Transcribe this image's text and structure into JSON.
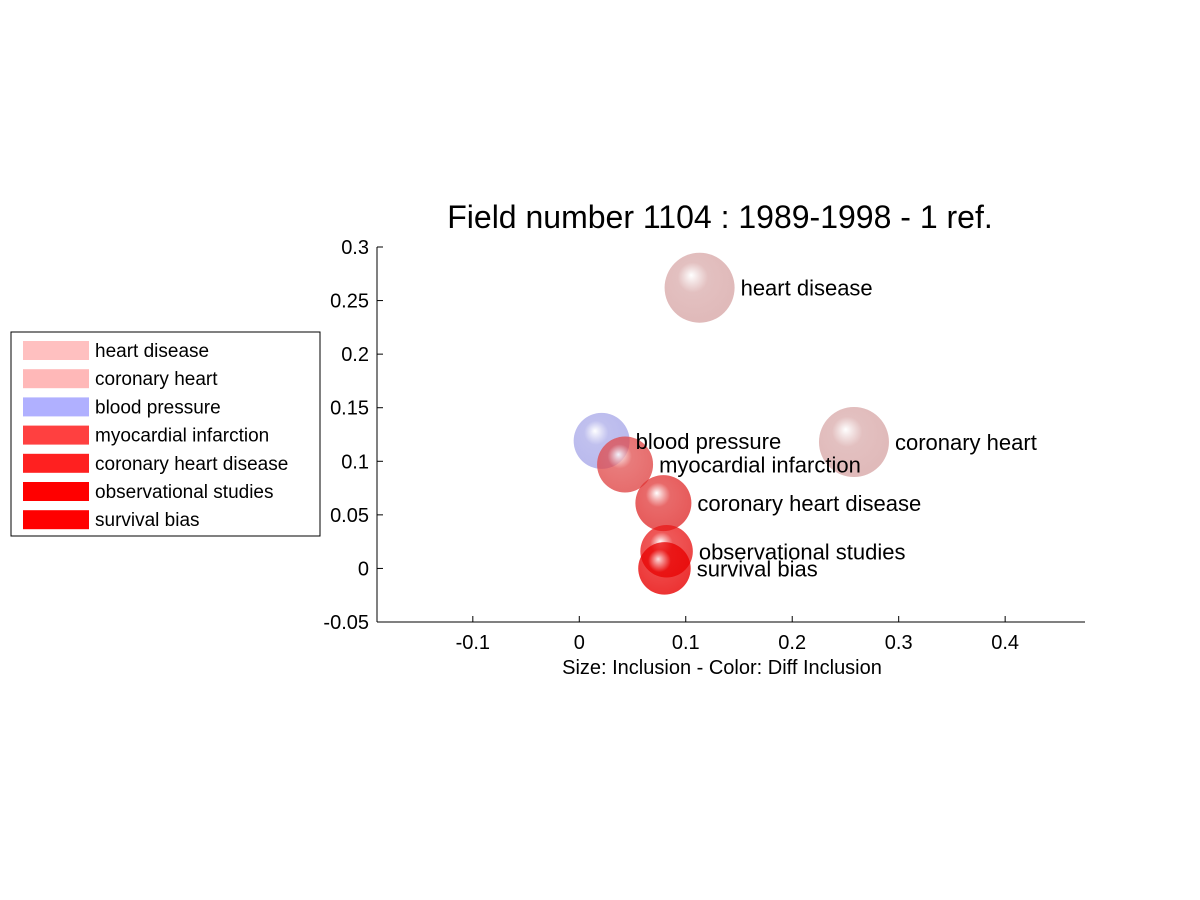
{
  "chart_data": {
    "type": "scatter",
    "title": "Field number 1104 : 1989-1998  - 1 ref.",
    "xlabel": "Size: Inclusion - Color: Diff Inclusion",
    "ylabel": "",
    "xlim": [
      -0.19,
      0.475
    ],
    "ylim": [
      -0.05,
      0.3
    ],
    "xticks": [
      -0.1,
      0,
      0.1,
      0.2,
      0.3,
      0.4
    ],
    "xtick_labels": [
      "-0.1",
      "0",
      "0.1",
      "0.2",
      "0.3",
      "0.4"
    ],
    "yticks": [
      -0.05,
      0,
      0.05,
      0.1,
      0.15,
      0.2,
      0.25,
      0.3
    ],
    "ytick_labels": [
      "-0.05",
      "0",
      "0.05",
      "0.1",
      "0.15",
      "0.2",
      "0.25",
      "0.3"
    ],
    "grid": false,
    "legend_position": "left",
    "points": [
      {
        "label": "heart disease",
        "x": 0.113,
        "y": 0.262,
        "size": 1.0,
        "color": "#d8a8a8"
      },
      {
        "label": "coronary heart",
        "x": 0.258,
        "y": 0.118,
        "size": 1.0,
        "color": "#d8a8a8"
      },
      {
        "label": "blood pressure",
        "x": 0.021,
        "y": 0.119,
        "size": 0.8,
        "color": "#a8a8e8"
      },
      {
        "label": "myocardial infarction",
        "x": 0.043,
        "y": 0.097,
        "size": 0.8,
        "color": "#e04848"
      },
      {
        "label": "coronary heart disease",
        "x": 0.079,
        "y": 0.061,
        "size": 0.8,
        "color": "#e03030"
      },
      {
        "label": "observational studies",
        "x": 0.082,
        "y": 0.016,
        "size": 0.75,
        "color": "#e81818"
      },
      {
        "label": "survival bias",
        "x": 0.08,
        "y": 0.0,
        "size": 0.75,
        "color": "#e80000"
      }
    ],
    "legend": [
      {
        "label": "heart disease",
        "color": "#ffc0c0"
      },
      {
        "label": "coronary heart",
        "color": "#ffb8b8"
      },
      {
        "label": "blood pressure",
        "color": "#b0b0ff"
      },
      {
        "label": "myocardial infarction",
        "color": "#ff4040"
      },
      {
        "label": "coronary heart disease",
        "color": "#ff2020"
      },
      {
        "label": "observational studies",
        "color": "#ff0000"
      },
      {
        "label": "survival bias",
        "color": "#ff0000"
      }
    ]
  }
}
